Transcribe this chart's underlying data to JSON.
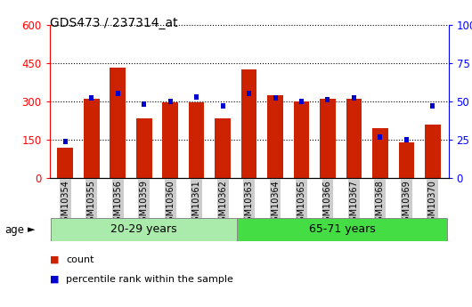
{
  "title": "GDS473 / 237314_at",
  "categories": [
    "GSM10354",
    "GSM10355",
    "GSM10356",
    "GSM10359",
    "GSM10360",
    "GSM10361",
    "GSM10362",
    "GSM10363",
    "GSM10364",
    "GSM10365",
    "GSM10366",
    "GSM10367",
    "GSM10368",
    "GSM10369",
    "GSM10370"
  ],
  "counts": [
    120,
    310,
    430,
    235,
    295,
    295,
    235,
    425,
    325,
    300,
    310,
    310,
    195,
    140,
    210
  ],
  "percentiles": [
    24,
    52,
    55,
    48,
    50,
    53,
    47,
    55,
    52,
    50,
    51,
    52,
    27,
    25,
    47
  ],
  "group1_label": "20-29 years",
  "group2_label": "65-71 years",
  "group1_count": 7,
  "age_label": "age",
  "ylim_left": [
    0,
    600
  ],
  "ylim_right": [
    0,
    100
  ],
  "yticks_left": [
    0,
    150,
    300,
    450,
    600
  ],
  "yticks_right": [
    0,
    25,
    50,
    75,
    100
  ],
  "bar_color": "#cc2200",
  "pct_color": "#0000cc",
  "group1_bg": "#aaeaaa",
  "group2_bg": "#44dd44",
  "tick_bg": "#cccccc",
  "legend_count_label": "count",
  "legend_pct_label": "percentile rank within the sample"
}
